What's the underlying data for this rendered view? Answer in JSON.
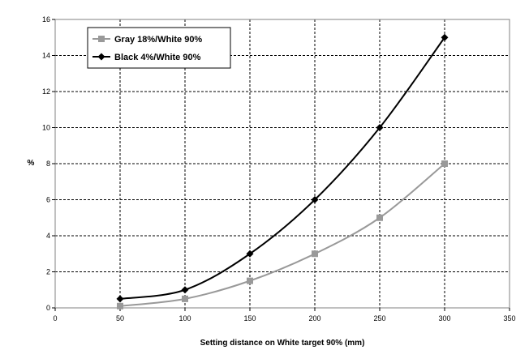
{
  "chart_data": {
    "type": "line",
    "title": "",
    "xlabel": "Setting distance on White target 90% (mm)",
    "ylabel": "%",
    "xlim": [
      0,
      350
    ],
    "ylim": [
      0,
      16
    ],
    "xticks": [
      0,
      50,
      100,
      150,
      200,
      250,
      300,
      350
    ],
    "yticks": [
      0,
      2,
      4,
      6,
      8,
      10,
      12,
      14,
      16
    ],
    "grid": true,
    "grid_style": "dashed",
    "legend_position": "top-left",
    "series": [
      {
        "name": "Gray 18%/White 90%",
        "color": "#999999",
        "marker": "square",
        "x": [
          50,
          100,
          150,
          200,
          250,
          300
        ],
        "y": [
          0.1,
          0.5,
          1.5,
          3.0,
          5.0,
          8.0
        ]
      },
      {
        "name": "Black 4%/White 90%",
        "color": "#000000",
        "marker": "diamond",
        "x": [
          50,
          100,
          150,
          200,
          250,
          300
        ],
        "y": [
          0.5,
          1.0,
          3.0,
          6.0,
          10.0,
          15.0
        ]
      }
    ]
  }
}
